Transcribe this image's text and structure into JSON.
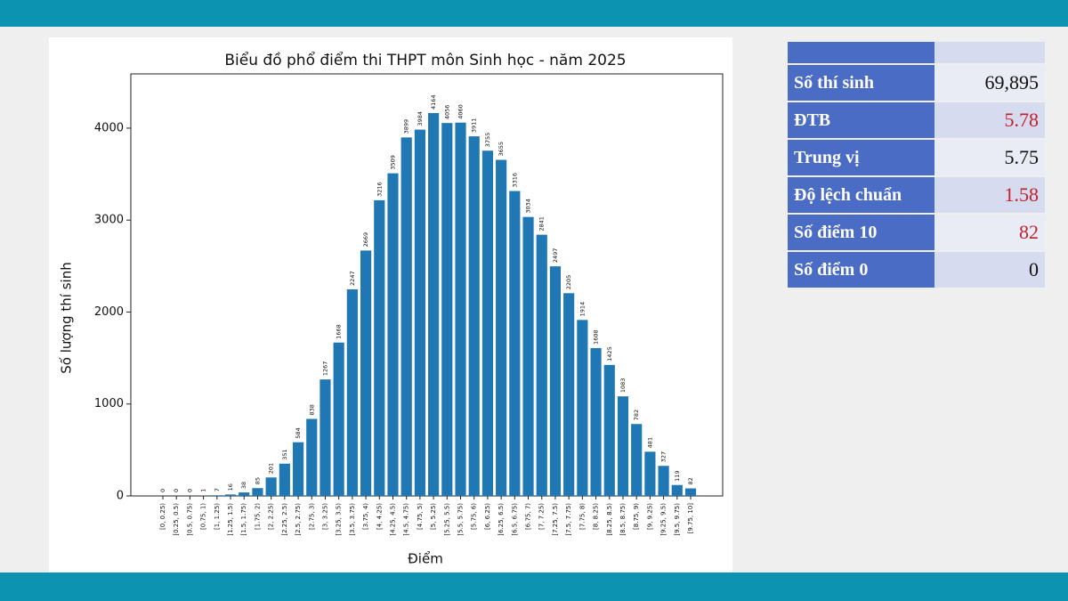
{
  "chart_data": {
    "type": "bar",
    "title": "Biểu đồ phổ điểm thi THPT môn Sinh học - năm 2025",
    "x_label": "Điểm",
    "y_label": "Số lượng thí sinh",
    "categories": [
      "[0, 0.25)",
      "[0.25, 0.5)",
      "[0.5, 0.75)",
      "[0.75, 1)",
      "[1, 1.25)",
      "[1.25, 1.5)",
      "[1.5, 1.75)",
      "[1.75, 2)",
      "[2, 2.25)",
      "[2.25, 2.5)",
      "[2.5, 2.75)",
      "[2.75, 3)",
      "[3, 3.25)",
      "[3.25, 3.5)",
      "[3.5, 3.75)",
      "[3.75, 4)",
      "[4, 4.25)",
      "[4.25, 4.5)",
      "[4.5, 4.75)",
      "[4.75, 5)",
      "[5, 5.25)",
      "[5.25, 5.5)",
      "[5.5, 5.75)",
      "[5.75, 6)",
      "[6, 6.25)",
      "[6.25, 6.5)",
      "[6.5, 6.75)",
      "[6.75, 7)",
      "[7, 7.25)",
      "[7.25, 7.5)",
      "[7.5, 7.75)",
      "[7.75, 8)",
      "[8, 8.25)",
      "[8.25, 8.5)",
      "[8.5, 8.75)",
      "[8.75, 9)",
      "[9, 9.25)",
      "[9.25, 9.5)",
      "[9.5, 9.75)",
      "[9.75, 10]"
    ],
    "values": [
      0,
      0,
      0,
      1,
      7,
      16,
      38,
      85,
      201,
      351,
      584,
      838,
      1267,
      1668,
      2247,
      2669,
      3216,
      3509,
      3899,
      3984,
      4164,
      4056,
      4060,
      3911,
      3755,
      3655,
      3316,
      3034,
      2841,
      2497,
      2205,
      1914,
      1608,
      1425,
      1083,
      782,
      481,
      327,
      119,
      82
    ],
    "color": "#1f77b4",
    "ylim": [
      0,
      4590
    ],
    "yticks": [
      0,
      1000,
      2000,
      3000,
      4000
    ],
    "grid": false
  },
  "stats_table": {
    "rows": [
      {
        "label": "Số thí sinh",
        "value": "69,895",
        "color": "#111111"
      },
      {
        "label": "ĐTB",
        "value": "5.78",
        "color": "#c0202a"
      },
      {
        "label": "Trung vị",
        "value": "5.75",
        "color": "#111111"
      },
      {
        "label": "Độ lệch chuẩn",
        "value": "1.58",
        "color": "#c0202a"
      },
      {
        "label": "Số điểm 10",
        "value": "82",
        "color": "#c0202a"
      },
      {
        "label": "Số điểm 0",
        "value": "0",
        "color": "#111111"
      }
    ]
  }
}
